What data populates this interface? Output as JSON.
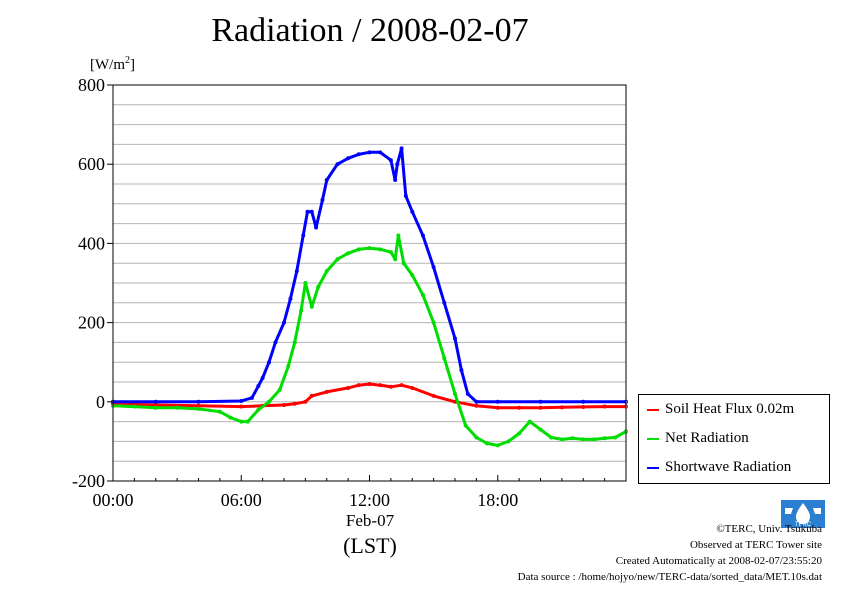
{
  "header": {
    "title": "Radiation / 2008-02-07",
    "unit_prefix": "[W/m",
    "unit_exp": "2",
    "unit_suffix": "]"
  },
  "axis": {
    "x_sublabel": "Feb-07",
    "x_label": "(LST)"
  },
  "footer": {
    "copyright": "©TERC, Univ. Tsukuba",
    "observed": "Observed at TERC Tower site",
    "created": "Created Automatically at 2008-02-07/23:55:20",
    "source": "Data source : /home/hojyo/new/TERC-data/sorted_data/MET.10s.dat",
    "logo_text": "TERC"
  },
  "chart_data": {
    "type": "line",
    "title": "Radiation / 2008-02-07",
    "ylabel": "[W/m2]",
    "xlabel": "(LST)",
    "xlim": [
      0,
      24
    ],
    "ylim": [
      -200,
      800
    ],
    "x_ticks": [
      {
        "value": 0,
        "label": "00:00"
      },
      {
        "value": 6,
        "label": "06:00"
      },
      {
        "value": 12,
        "label": "12:00"
      },
      {
        "value": 18,
        "label": "18:00"
      }
    ],
    "y_ticks": [
      {
        "value": -200,
        "label": "-200"
      },
      {
        "value": 0,
        "label": "0"
      },
      {
        "value": 200,
        "label": "200"
      },
      {
        "value": 400,
        "label": "400"
      },
      {
        "value": 600,
        "label": "600"
      },
      {
        "value": 800,
        "label": "800"
      }
    ],
    "grid": true,
    "legend_position": "right, outside plot",
    "series": [
      {
        "name": "Soil Heat Flux 0.02m",
        "color": "#ff0000",
        "x": [
          0,
          2,
          4,
          6,
          7,
          8,
          8.5,
          9,
          9.3,
          10,
          11,
          11.5,
          12,
          12.5,
          13,
          13.5,
          14,
          15,
          16,
          17,
          18,
          19,
          20,
          21,
          22,
          23,
          24
        ],
        "y": [
          -5,
          -8,
          -10,
          -12,
          -10,
          -8,
          -5,
          0,
          15,
          25,
          35,
          42,
          45,
          42,
          38,
          42,
          35,
          15,
          0,
          -10,
          -15,
          -15,
          -15,
          -14,
          -13,
          -12,
          -12
        ]
      },
      {
        "name": "Net Radiation",
        "color": "#00dd00",
        "x": [
          0,
          1,
          2,
          3,
          4,
          5,
          5.5,
          6,
          6.3,
          6.8,
          7.3,
          7.8,
          8.2,
          8.5,
          8.8,
          9.0,
          9.3,
          9.6,
          10,
          10.5,
          11,
          11.5,
          12,
          12.5,
          13.0,
          13.2,
          13.35,
          13.6,
          14,
          14.5,
          15,
          15.5,
          16,
          16.5,
          17,
          17.5,
          18,
          18.5,
          19,
          19.5,
          20,
          20.5,
          21,
          21.5,
          22,
          22.5,
          23,
          23.5,
          24
        ],
        "y": [
          -10,
          -12,
          -15,
          -15,
          -18,
          -25,
          -40,
          -50,
          -50,
          -20,
          0,
          30,
          90,
          150,
          230,
          300,
          240,
          290,
          330,
          360,
          375,
          385,
          388,
          385,
          378,
          360,
          420,
          350,
          320,
          270,
          200,
          110,
          20,
          -60,
          -90,
          -105,
          -110,
          -100,
          -80,
          -50,
          -70,
          -90,
          -95,
          -92,
          -95,
          -95,
          -92,
          -90,
          -75
        ]
      },
      {
        "name": "Shortwave Radiation",
        "color": "#0000ff",
        "x": [
          0,
          2,
          4,
          6,
          6.5,
          6.8,
          7.0,
          7.3,
          7.6,
          8.0,
          8.3,
          8.6,
          8.9,
          9.1,
          9.3,
          9.5,
          9.8,
          10,
          10.5,
          11,
          11.5,
          12,
          12.5,
          13.0,
          13.2,
          13.3,
          13.5,
          13.7,
          14,
          14.5,
          15,
          15.5,
          16,
          16.3,
          16.6,
          17,
          18,
          20,
          22,
          24
        ],
        "y": [
          0,
          0,
          0,
          2,
          10,
          40,
          60,
          100,
          150,
          200,
          260,
          330,
          420,
          480,
          480,
          440,
          510,
          560,
          600,
          615,
          625,
          630,
          630,
          610,
          560,
          600,
          640,
          520,
          480,
          420,
          340,
          250,
          160,
          80,
          20,
          0,
          0,
          0,
          0,
          0
        ]
      }
    ]
  }
}
